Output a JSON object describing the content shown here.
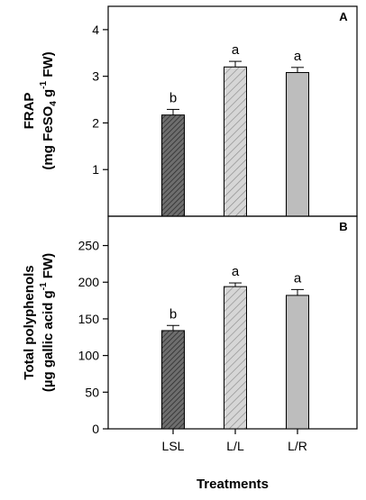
{
  "chart_data": [
    {
      "type": "bar",
      "panel": "A",
      "ylabel": "FRAP (mg FeSO4 g-1 FW)",
      "ylabel_parts": {
        "line1": "FRAP",
        "line2_pre": "(mg FeSO",
        "line2_sub": "4",
        "line2_mid": " g",
        "line2_sup": "-1",
        "line2_post": " FW)"
      },
      "categories": [
        "LSL",
        "L/L",
        "L/R"
      ],
      "values": [
        2.17,
        3.2,
        3.08
      ],
      "errors": [
        0.12,
        0.12,
        0.11
      ],
      "letters": [
        "b",
        "a",
        "a"
      ],
      "ylim": [
        0,
        4.5
      ],
      "yticks": [
        1,
        2,
        3,
        4
      ],
      "grid": false
    },
    {
      "type": "bar",
      "panel": "B",
      "ylabel": "Total polyphenols (µg gallic acid g-1 FW)",
      "ylabel_parts": {
        "line1": "Total polyphenols",
        "line2_pre": "(µg gallic acid g",
        "line2_sup": "-1",
        "line2_post": " FW)"
      },
      "xlabel": "Treatments",
      "categories": [
        "LSL",
        "L/L",
        "L/R"
      ],
      "values": [
        134,
        194,
        182
      ],
      "errors": [
        7,
        5,
        8
      ],
      "letters": [
        "b",
        "a",
        "a"
      ],
      "ylim": [
        0,
        290
      ],
      "yticks": [
        0,
        50,
        100,
        150,
        200,
        250
      ],
      "grid": false
    }
  ],
  "series_style": {
    "LSL": {
      "fill": "#6e6e6e",
      "hatch": "dense-diagonal"
    },
    "L/L": {
      "fill": "#d6d6d6",
      "hatch": "diagonal"
    },
    "L/R": {
      "fill": "#bdbdbd",
      "hatch": "none"
    }
  }
}
